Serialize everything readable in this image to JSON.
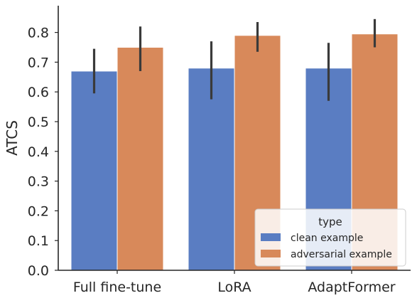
{
  "chart_data": {
    "type": "bar",
    "title": "",
    "xlabel": "",
    "ylabel": "ATCS",
    "ylim": [
      0,
      0.89
    ],
    "yticks": [
      0.0,
      0.1,
      0.2,
      0.3,
      0.4,
      0.5,
      0.6,
      0.7,
      0.8
    ],
    "ytick_labels": [
      "0.0",
      "0.1",
      "0.2",
      "0.3",
      "0.4",
      "0.5",
      "0.6",
      "0.7",
      "0.8"
    ],
    "categories": [
      "Full fine-tune",
      "LoRA",
      "AdaptFormer"
    ],
    "series": [
      {
        "name": "clean example",
        "color": "#5a7dc2",
        "values": [
          0.67,
          0.68,
          0.68
        ],
        "error_low": [
          0.595,
          0.575,
          0.57
        ],
        "error_high": [
          0.745,
          0.77,
          0.765
        ]
      },
      {
        "name": "adversarial example",
        "color": "#d8895a",
        "values": [
          0.75,
          0.79,
          0.795
        ],
        "error_low": [
          0.67,
          0.735,
          0.75
        ],
        "error_high": [
          0.82,
          0.835,
          0.845
        ]
      }
    ],
    "error_bar_color": "#3a3a3a",
    "grid": false,
    "legend": {
      "title": "type",
      "placement": "lower-right"
    }
  }
}
